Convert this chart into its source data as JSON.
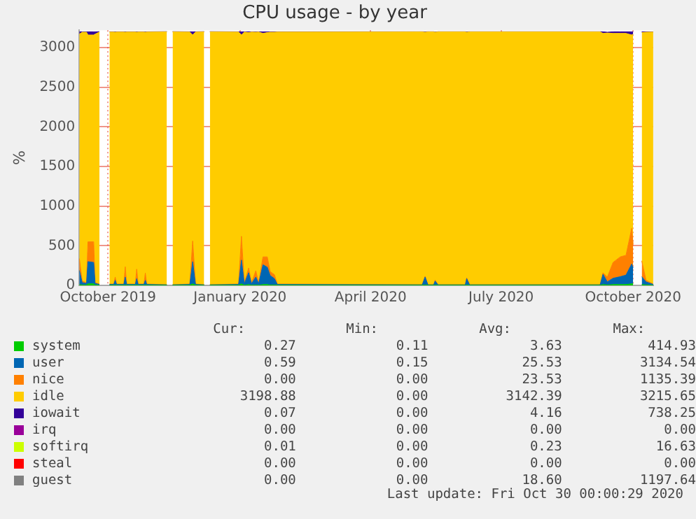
{
  "chart_data": {
    "type": "area",
    "title": "CPU usage - by year",
    "ylabel": "%",
    "stacked": true,
    "grid": true,
    "legend": "bottom",
    "xlim": [
      "2019-09-26",
      "2020-10-30"
    ],
    "xticks": [
      {
        "value": "2019-10-16",
        "label": "October 2019"
      },
      {
        "value": "2020-01-16",
        "label": "January 2020"
      },
      {
        "value": "2020-04-16",
        "label": "April 2020"
      },
      {
        "value": "2020-07-16",
        "label": "July 2020"
      },
      {
        "value": "2020-10-16",
        "label": "October 2020"
      }
    ],
    "ylim": [
      0,
      3220
    ],
    "yticks": [
      0,
      500,
      1000,
      1500,
      2000,
      2500,
      3000
    ],
    "x": [
      "2019-09-26",
      "2019-09-28",
      "2019-10-01",
      "2019-10-02",
      "2019-10-06",
      "2019-10-07",
      "2019-10-10",
      "2019-10-14",
      "2019-10-17",
      "2019-10-20",
      "2019-10-21",
      "2019-10-22",
      "2019-10-27",
      "2019-10-28",
      "2019-10-29",
      "2019-11-04",
      "2019-11-05",
      "2019-11-06",
      "2019-11-10",
      "2019-11-11",
      "2019-11-12",
      "2019-11-26",
      "2019-11-28",
      "2019-11-30",
      "2019-12-12",
      "2019-12-14",
      "2019-12-16",
      "2019-12-22",
      "2019-12-24",
      "2019-12-26",
      "2020-01-15",
      "2020-01-17",
      "2020-01-19",
      "2020-01-22",
      "2020-01-24",
      "2020-01-27",
      "2020-01-29",
      "2020-02-01",
      "2020-02-04",
      "2020-02-06",
      "2020-02-09",
      "2020-02-11",
      "2020-05-22",
      "2020-05-24",
      "2020-05-26",
      "2020-05-30",
      "2020-05-31",
      "2020-06-02",
      "2020-06-21",
      "2020-06-22",
      "2020-06-24",
      "2020-09-23",
      "2020-09-25",
      "2020-09-28",
      "2020-10-02",
      "2020-10-07",
      "2020-10-11",
      "2020-10-15",
      "2020-10-16",
      "2020-10-19",
      "2020-10-22",
      "2020-10-25",
      "2020-10-30"
    ],
    "series": [
      {
        "name": "system",
        "color": "#00cc00",
        "values": [
          10,
          5,
          5,
          20,
          20,
          5,
          2,
          null,
          2,
          2,
          5,
          2,
          2,
          5,
          2,
          2,
          5,
          2,
          2,
          5,
          2,
          2,
          null,
          2,
          2,
          20,
          2,
          2,
          null,
          2,
          2,
          20,
          2,
          10,
          2,
          5,
          2,
          10,
          10,
          5,
          5,
          2,
          2,
          5,
          2,
          2,
          5,
          2,
          2,
          5,
          2,
          2,
          10,
          5,
          10,
          10,
          10,
          20,
          20,
          null,
          10,
          5,
          2
        ]
      },
      {
        "name": "user",
        "color": "#0066b3",
        "values": [
          180,
          30,
          20,
          280,
          270,
          20,
          10,
          null,
          10,
          10,
          60,
          10,
          10,
          100,
          10,
          10,
          80,
          10,
          10,
          60,
          10,
          5,
          null,
          5,
          10,
          280,
          10,
          5,
          null,
          5,
          10,
          300,
          20,
          150,
          20,
          100,
          20,
          250,
          220,
          120,
          80,
          10,
          5,
          100,
          5,
          5,
          50,
          5,
          5,
          80,
          5,
          5,
          130,
          40,
          80,
          100,
          120,
          250,
          200,
          null,
          100,
          40,
          10
        ]
      },
      {
        "name": "nice",
        "color": "#ff8000",
        "values": [
          150,
          20,
          10,
          250,
          260,
          10,
          5,
          null,
          5,
          5,
          40,
          5,
          5,
          130,
          5,
          5,
          120,
          5,
          5,
          90,
          5,
          2,
          null,
          2,
          5,
          260,
          5,
          2,
          null,
          2,
          5,
          300,
          10,
          60,
          10,
          80,
          10,
          100,
          130,
          50,
          50,
          5,
          2,
          10,
          2,
          2,
          10,
          2,
          2,
          10,
          2,
          2,
          20,
          60,
          200,
          250,
          250,
          450,
          300,
          null,
          200,
          20,
          5
        ]
      },
      {
        "name": "idle",
        "color": "#ffcc00",
        "values": [
          2830,
          3140,
          3160,
          2610,
          2610,
          3135,
          3180,
          null,
          3180,
          3180,
          3090,
          3180,
          3180,
          2960,
          3180,
          3180,
          2990,
          3180,
          3180,
          3040,
          3180,
          3190,
          null,
          3190,
          3180,
          2600,
          3180,
          3190,
          null,
          3190,
          3180,
          2540,
          3165,
          2970,
          3165,
          3010,
          3165,
          2820,
          2830,
          3020,
          3060,
          3180,
          3190,
          3080,
          3190,
          3190,
          3130,
          3190,
          3190,
          3100,
          3190,
          3190,
          3020,
          3080,
          2890,
          2820,
          2800,
          2440,
          2650,
          null,
          2880,
          3130,
          3180
        ]
      },
      {
        "name": "iowait",
        "color": "#330099",
        "values": [
          30,
          5,
          5,
          40,
          40,
          30,
          5,
          null,
          3,
          3,
          5,
          3,
          3,
          5,
          3,
          3,
          5,
          3,
          3,
          5,
          3,
          3,
          null,
          3,
          3,
          40,
          3,
          3,
          null,
          3,
          3,
          40,
          3,
          10,
          3,
          5,
          3,
          20,
          10,
          5,
          5,
          3,
          2,
          5,
          2,
          2,
          2,
          2,
          2,
          5,
          2,
          2,
          20,
          10,
          20,
          20,
          20,
          40,
          30,
          null,
          10,
          5,
          3
        ]
      },
      {
        "name": "irq",
        "color": "#990099",
        "values": [
          null,
          null,
          null,
          null,
          null,
          null,
          null,
          null,
          null,
          null,
          null,
          null,
          null,
          null,
          null,
          null,
          null,
          null,
          null,
          null,
          null,
          null,
          null,
          null,
          null,
          null,
          null,
          null,
          null,
          null,
          null,
          null,
          null,
          null,
          null,
          null,
          null,
          null,
          null,
          null,
          null,
          null,
          null,
          null,
          null,
          null,
          null,
          null,
          null,
          null,
          null,
          null,
          null,
          null,
          null,
          null,
          null,
          null,
          null,
          null,
          null,
          null,
          null
        ]
      },
      {
        "name": "softirq",
        "color": "#ccff00",
        "values": [
          null,
          null,
          null,
          null,
          null,
          null,
          null,
          null,
          null,
          null,
          null,
          null,
          null,
          null,
          null,
          null,
          null,
          null,
          null,
          null,
          null,
          null,
          null,
          null,
          null,
          null,
          null,
          null,
          null,
          null,
          null,
          null,
          null,
          null,
          null,
          null,
          null,
          null,
          null,
          null,
          null,
          null,
          null,
          null,
          null,
          null,
          null,
          null,
          null,
          null,
          null,
          null,
          null,
          null,
          null,
          null,
          null,
          null,
          null,
          null,
          null,
          null,
          null
        ]
      },
      {
        "name": "steal",
        "color": "#ff0000",
        "values": [
          null,
          null,
          null,
          null,
          null,
          null,
          null,
          null,
          null,
          null,
          null,
          null,
          null,
          null,
          null,
          null,
          null,
          null,
          null,
          null,
          null,
          null,
          null,
          null,
          null,
          null,
          null,
          null,
          null,
          null,
          null,
          null,
          null,
          null,
          null,
          null,
          null,
          null,
          null,
          null,
          null,
          null,
          null,
          null,
          null,
          null,
          null,
          null,
          null,
          null,
          null,
          null,
          null,
          null,
          null,
          null,
          null,
          null,
          null,
          null,
          null,
          null,
          null
        ]
      },
      {
        "name": "guest",
        "color": "#808080",
        "values": [
          null,
          null,
          null,
          null,
          null,
          null,
          null,
          null,
          null,
          null,
          null,
          null,
          null,
          null,
          null,
          null,
          null,
          null,
          null,
          null,
          null,
          null,
          null,
          null,
          null,
          null,
          null,
          null,
          null,
          null,
          null,
          null,
          null,
          null,
          null,
          null,
          null,
          null,
          null,
          null,
          null,
          null,
          null,
          null,
          null,
          null,
          null,
          null,
          null,
          null,
          null,
          null,
          null,
          null,
          null,
          null,
          null,
          null,
          null,
          null,
          null,
          null,
          null
        ]
      }
    ],
    "annotations": [
      "Cur:",
      "Min:",
      "Avg:",
      "Max:",
      "0.27",
      "0.11",
      "3.63",
      "414.93",
      "0.59",
      "0.15",
      "25.53",
      "3134.54",
      "0.00",
      "0.00",
      "23.53",
      "1135.39",
      "3198.88",
      "0.00",
      "3142.39",
      "3215.65",
      "0.07",
      "0.00",
      "4.16",
      "738.25",
      "0.00",
      "0.00",
      "0.00",
      "0.00",
      "0.01",
      "0.00",
      "0.23",
      "16.63",
      "0.00",
      "0.00",
      "0.00",
      "0.00",
      "0.00",
      "0.00",
      "18.60",
      "1197.64",
      "Last update: Fri Oct 30 00:00:29 2020"
    ]
  }
}
